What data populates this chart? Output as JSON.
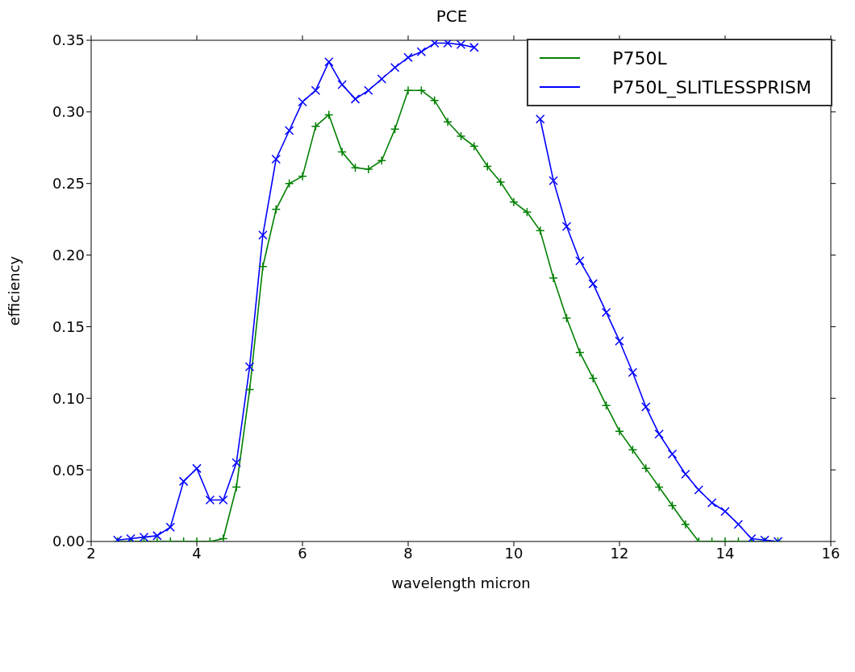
{
  "chart_data": {
    "type": "line",
    "title": "PCE",
    "xlabel": "wavelength micron",
    "ylabel": "efficiency",
    "x": [
      2.5,
      2.75,
      3,
      3.25,
      3.5,
      3.75,
      4,
      4.25,
      4.5,
      4.75,
      5,
      5.25,
      5.5,
      5.75,
      6,
      6.25,
      6.5,
      6.75,
      7,
      7.25,
      7.5,
      7.75,
      8,
      8.25,
      8.5,
      8.75,
      9,
      9.25,
      9.5,
      9.75,
      10,
      10.25,
      10.5,
      10.75,
      11,
      11.25,
      11.5,
      11.75,
      12,
      12.25,
      12.5,
      12.75,
      13,
      13.25,
      13.5,
      13.75,
      14,
      14.25,
      14.5,
      14.75,
      15
    ],
    "series": [
      {
        "name": "P750L",
        "color": "#008000",
        "marker": "plus",
        "values": [
          0,
          0,
          0,
          0,
          0,
          0,
          0,
          0,
          0.002,
          0.038,
          0.106,
          0.192,
          0.232,
          0.25,
          0.255,
          0.29,
          0.298,
          0.272,
          0.261,
          0.26,
          0.266,
          0.288,
          0.315,
          0.315,
          0.308,
          0.293,
          0.283,
          0.276,
          0.262,
          0.251,
          0.237,
          0.23,
          0.217,
          0.184,
          0.156,
          0.132,
          0.114,
          0.095,
          0.077,
          0.064,
          0.051,
          0.038,
          0.025,
          0.012,
          0,
          0,
          0,
          0,
          0,
          0,
          0
        ]
      },
      {
        "name": "P750L_SLITLESSPRISM",
        "color": "#0000ff",
        "marker": "cross",
        "values": [
          0.001,
          0.002,
          0.003,
          0.004,
          0.01,
          0.042,
          0.051,
          0.029,
          0.029,
          0.055,
          0.122,
          0.214,
          0.267,
          0.287,
          0.307,
          0.315,
          0.335,
          0.319,
          0.309,
          0.315,
          0.323,
          0.331,
          0.338,
          0.342,
          0.348,
          0.348,
          0.347,
          0.345,
          null,
          null,
          null,
          null,
          0.295,
          0.252,
          0.22,
          0.196,
          0.18,
          0.16,
          0.14,
          0.118,
          0.094,
          0.075,
          0.061,
          0.047,
          0.036,
          0.027,
          0.021,
          0.012,
          0.002,
          0.001,
          0
        ]
      }
    ],
    "xlim": [
      2,
      16
    ],
    "xticks": [
      2,
      4,
      6,
      8,
      10,
      12,
      14,
      16
    ],
    "ylim": [
      0,
      0.35
    ],
    "yticks": [
      {
        "value": 0,
        "label": "0.00"
      },
      {
        "value": 0.05,
        "label": "0.05"
      },
      {
        "value": 0.1,
        "label": "0.10"
      },
      {
        "value": 0.15,
        "label": "0.15"
      },
      {
        "value": 0.2,
        "label": "0.20"
      },
      {
        "value": 0.25,
        "label": "0.25"
      },
      {
        "value": 0.3,
        "label": "0.30"
      },
      {
        "value": 0.35,
        "label": "0.35"
      }
    ],
    "grid": false,
    "legend": "top right",
    "line_style": "solid"
  }
}
